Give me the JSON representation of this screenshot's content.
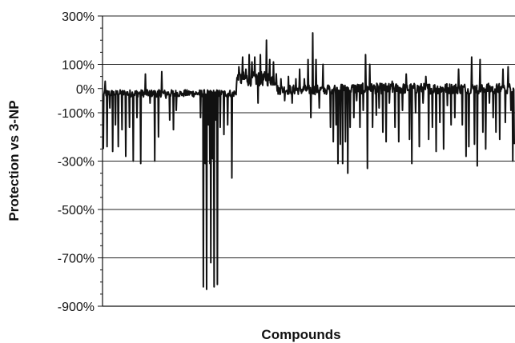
{
  "chart_data": {
    "type": "line",
    "title": "",
    "xlabel": "Compounds",
    "ylabel": "Protection vs 3-NP",
    "y_unit": "%",
    "ylim": [
      -900,
      300
    ],
    "yticks": [
      300,
      100,
      0,
      -100,
      -300,
      -500,
      -700,
      -900
    ],
    "ytick_labels": [
      "300%",
      "100%",
      "0%",
      "-100%",
      "-300%",
      "-500%",
      "-700%",
      "-900%"
    ],
    "gridlines": [
      100,
      -100,
      -300,
      -500,
      -700
    ],
    "grid": true,
    "legend": "none",
    "line_color": "#111111",
    "n_compounds": 880,
    "series": [
      {
        "baseline_segments": [
          {
            "x_start": 0,
            "x_end": 285,
            "center": -20,
            "amp": 15
          },
          {
            "x_start": 285,
            "x_end": 372,
            "center": 40,
            "amp": 30
          },
          {
            "x_start": 372,
            "x_end": 478,
            "center": -5,
            "amp": 20
          },
          {
            "x_start": 478,
            "x_end": 880,
            "center": 0,
            "amp": 22
          }
        ],
        "spikes": [
          [
            0,
            -250
          ],
          [
            4,
            30
          ],
          [
            8,
            -240
          ],
          [
            14,
            -80
          ],
          [
            20,
            -260
          ],
          [
            26,
            -150
          ],
          [
            32,
            -240
          ],
          [
            40,
            -170
          ],
          [
            48,
            -280
          ],
          [
            56,
            -160
          ],
          [
            64,
            -300
          ],
          [
            72,
            -120
          ],
          [
            80,
            -310
          ],
          [
            90,
            60
          ],
          [
            100,
            -60
          ],
          [
            110,
            -300
          ],
          [
            118,
            -200
          ],
          [
            125,
            70
          ],
          [
            134,
            -40
          ],
          [
            142,
            -130
          ],
          [
            150,
            -170
          ],
          [
            156,
            -90
          ],
          [
            170,
            -20
          ],
          [
            208,
            -120
          ],
          [
            214,
            -820
          ],
          [
            218,
            -310
          ],
          [
            221,
            -830
          ],
          [
            225,
            -150
          ],
          [
            228,
            -310
          ],
          [
            230,
            -720
          ],
          [
            234,
            -290
          ],
          [
            237,
            -820
          ],
          [
            241,
            -130
          ],
          [
            244,
            -810
          ],
          [
            250,
            -160
          ],
          [
            258,
            -190
          ],
          [
            266,
            -150
          ],
          [
            275,
            -370
          ],
          [
            290,
            90
          ],
          [
            298,
            130
          ],
          [
            305,
            80
          ],
          [
            312,
            140
          ],
          [
            318,
            110
          ],
          [
            324,
            130
          ],
          [
            331,
            -60
          ],
          [
            336,
            140
          ],
          [
            342,
            60
          ],
          [
            349,
            200
          ],
          [
            356,
            120
          ],
          [
            364,
            110
          ],
          [
            372,
            -10
          ],
          [
            380,
            40
          ],
          [
            388,
            -50
          ],
          [
            396,
            50
          ],
          [
            404,
            -60
          ],
          [
            412,
            40
          ],
          [
            420,
            80
          ],
          [
            430,
            40
          ],
          [
            438,
            120
          ],
          [
            444,
            -120
          ],
          [
            448,
            230
          ],
          [
            455,
            120
          ],
          [
            462,
            -80
          ],
          [
            470,
            100
          ],
          [
            478,
            -20
          ],
          [
            486,
            -160
          ],
          [
            492,
            -220
          ],
          [
            498,
            -150
          ],
          [
            502,
            -310
          ],
          [
            507,
            -230
          ],
          [
            512,
            -310
          ],
          [
            518,
            -220
          ],
          [
            523,
            -350
          ],
          [
            528,
            -160
          ],
          [
            536,
            -120
          ],
          [
            542,
            -50
          ],
          [
            549,
            -160
          ],
          [
            556,
            -90
          ],
          [
            561,
            140
          ],
          [
            565,
            -330
          ],
          [
            570,
            100
          ],
          [
            576,
            -160
          ],
          [
            584,
            -110
          ],
          [
            590,
            -80
          ],
          [
            598,
            -180
          ],
          [
            605,
            -220
          ],
          [
            612,
            -60
          ],
          [
            618,
            30
          ],
          [
            624,
            -160
          ],
          [
            632,
            -220
          ],
          [
            640,
            -90
          ],
          [
            648,
            60
          ],
          [
            655,
            -210
          ],
          [
            660,
            -310
          ],
          [
            668,
            -100
          ],
          [
            676,
            -240
          ],
          [
            684,
            -60
          ],
          [
            690,
            50
          ],
          [
            696,
            -210
          ],
          [
            704,
            -160
          ],
          [
            712,
            -260
          ],
          [
            720,
            -140
          ],
          [
            728,
            -250
          ],
          [
            736,
            -70
          ],
          [
            744,
            -150
          ],
          [
            752,
            -120
          ],
          [
            760,
            80
          ],
          [
            768,
            -150
          ],
          [
            776,
            -280
          ],
          [
            782,
            -240
          ],
          [
            788,
            130
          ],
          [
            794,
            -230
          ],
          [
            800,
            -320
          ],
          [
            806,
            120
          ],
          [
            812,
            -180
          ],
          [
            818,
            -250
          ],
          [
            826,
            -60
          ],
          [
            834,
            -120
          ],
          [
            840,
            -180
          ],
          [
            848,
            -210
          ],
          [
            855,
            80
          ],
          [
            860,
            -140
          ],
          [
            866,
            90
          ],
          [
            872,
            -90
          ],
          [
            876,
            -300
          ],
          [
            879,
            -230
          ]
        ]
      }
    ]
  }
}
